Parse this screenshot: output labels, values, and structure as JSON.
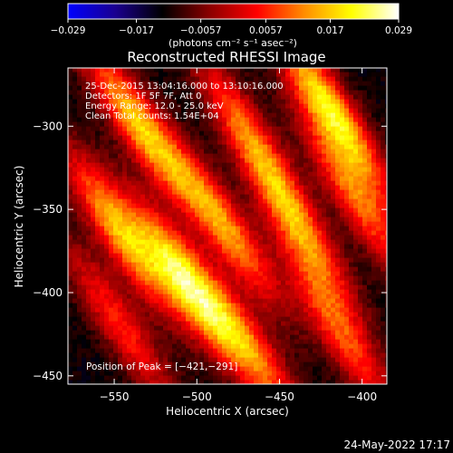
{
  "chart_data": {
    "type": "heatmap",
    "title": "Reconstructed RHESSI Image",
    "xlabel": "Heliocentric X (arcsec)",
    "ylabel": "Heliocentric Y (arcsec)",
    "xlim": [
      -578,
      -385
    ],
    "ylim": [
      -455,
      -265
    ],
    "x_ticks": [
      {
        "value": -550,
        "label": "−550"
      },
      {
        "value": -500,
        "label": "−500"
      },
      {
        "value": -450,
        "label": "−450"
      },
      {
        "value": -400,
        "label": "−400"
      }
    ],
    "y_ticks": [
      {
        "value": -300,
        "label": "−300"
      },
      {
        "value": -350,
        "label": "−350"
      },
      {
        "value": -400,
        "label": "−400"
      },
      {
        "value": -450,
        "label": "−450"
      }
    ],
    "annotations": [
      "25-Dec-2015 13:04:16.000 to 13:10:16.000",
      "Detectors: 1F 5F 7F, Att 0",
      "Energy Range: 12.0 - 25.0 keV",
      "Clean    Total counts: 1.54E+04"
    ],
    "peak_label": "Position of Peak = [−421,−291]",
    "peak": [
      -421,
      -291
    ],
    "colorbar": {
      "min": -0.029,
      "max": 0.029,
      "ticks": [
        {
          "value": -0.029,
          "label": "−0.029"
        },
        {
          "value": -0.017,
          "label": "−0.017"
        },
        {
          "value": -0.0057,
          "label": "−0.0057"
        },
        {
          "value": 0.0057,
          "label": "0.0057"
        },
        {
          "value": 0.017,
          "label": "0.017"
        },
        {
          "value": 0.029,
          "label": "0.029"
        }
      ],
      "units_label": "(photons cm⁻² s⁻¹ asec⁻²)",
      "colors": [
        "#0000ff",
        "#1a0090",
        "#000000",
        "#8b0000",
        "#ff0000",
        "#ff8c00",
        "#ffff00",
        "#ffffff"
      ]
    },
    "bands": [
      {
        "x": -537,
        "y": -300,
        "amplitude": 0.024
      },
      {
        "x": -470,
        "y": -305,
        "amplitude": 0.016
      },
      {
        "x": -420,
        "y": -292,
        "amplitude": 0.029
      },
      {
        "x": -548,
        "y": -365,
        "amplitude": 0.023
      },
      {
        "x": -508,
        "y": -395,
        "amplitude": 0.028
      },
      {
        "x": -485,
        "y": -360,
        "amplitude": 0.021
      },
      {
        "x": -440,
        "y": -362,
        "amplitude": 0.019
      },
      {
        "x": -405,
        "y": -345,
        "amplitude": 0.017
      },
      {
        "x": -548,
        "y": -420,
        "amplitude": 0.014
      },
      {
        "x": -470,
        "y": -432,
        "amplitude": 0.018
      },
      {
        "x": -415,
        "y": -425,
        "amplitude": 0.016
      }
    ],
    "band_direction": [
      0.55,
      -0.835
    ],
    "background_level": -0.012
  },
  "footer_date": "24-May-2022 17:17"
}
